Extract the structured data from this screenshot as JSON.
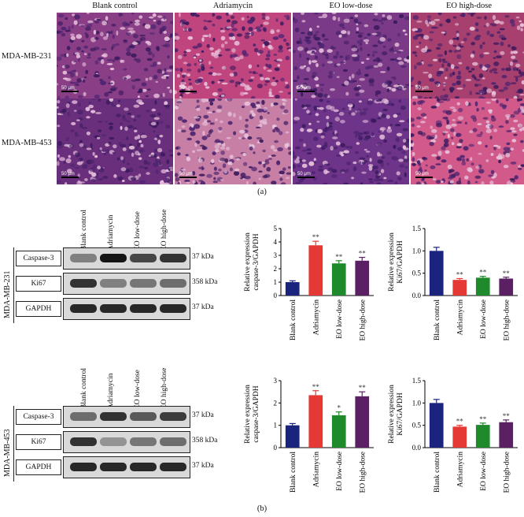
{
  "panel_a": {
    "columns": [
      "Blank control",
      "Adriamycin",
      "EO low-dose",
      "EO high-dose"
    ],
    "rows": [
      "MDA-MB-231",
      "MDA-MB-453"
    ],
    "scale_label": "50 μm",
    "caption": "(a)"
  },
  "panel_b": {
    "caption": "(b)",
    "lanes": [
      "Blank control",
      "Adriamycin",
      "EO low-dose",
      "EO high-dose"
    ],
    "blots": [
      {
        "cell_line": "MDA-MB-231",
        "bands": [
          {
            "name": "Caspase-3",
            "kda": "37 kDa"
          },
          {
            "name": "Ki67",
            "kda": "358 kDa"
          },
          {
            "name": "GAPDH",
            "kda": "37 kDa"
          }
        ]
      },
      {
        "cell_line": "MDA-MB-453",
        "bands": [
          {
            "name": "Caspase-3",
            "kda": "37 kDa"
          },
          {
            "name": "Ki67",
            "kda": "358 kDa"
          },
          {
            "name": "GAPDH",
            "kda": "37 kDa"
          }
        ]
      }
    ]
  },
  "colors": {
    "blank": "#1a237e",
    "adriamycin": "#e53935",
    "eo_low": "#1e8a2b",
    "eo_high": "#5b1f63"
  },
  "chart_data": [
    {
      "type": "bar",
      "id": "c1",
      "categories": [
        "Blank control",
        "Adriamycin",
        "EO low-dose",
        "EO high-dose"
      ],
      "values": [
        1.0,
        3.75,
        2.4,
        2.6
      ],
      "errors": [
        0.1,
        0.3,
        0.2,
        0.25
      ],
      "sig": [
        "",
        "**",
        "**",
        "**"
      ],
      "ylabel": [
        "Relative expression",
        "caspase-3/GAPDH"
      ],
      "ylim": [
        0,
        5
      ],
      "yticks": [
        0,
        1,
        2,
        3,
        4,
        5
      ]
    },
    {
      "type": "bar",
      "id": "c2",
      "categories": [
        "Blank control",
        "Adriamycin",
        "EO low-dose",
        "EO high-dose"
      ],
      "values": [
        1.0,
        0.35,
        0.4,
        0.38
      ],
      "errors": [
        0.08,
        0.03,
        0.03,
        0.03
      ],
      "sig": [
        "",
        "**",
        "**",
        "**"
      ],
      "ylabel": [
        "Relative expression",
        "Ki67/GAPDH"
      ],
      "ylim": [
        0,
        1.5
      ],
      "yticks": [
        0.0,
        0.5,
        1.0,
        1.5
      ]
    },
    {
      "type": "bar",
      "id": "c3",
      "categories": [
        "Blank control",
        "Adriamycin",
        "EO low-dose",
        "EO high-dose"
      ],
      "values": [
        1.0,
        2.35,
        1.45,
        2.3
      ],
      "errors": [
        0.08,
        0.2,
        0.15,
        0.2
      ],
      "sig": [
        "",
        "**",
        "*",
        "**"
      ],
      "ylabel": [
        "Relative expression",
        "caspase-3/GAPDH"
      ],
      "ylim": [
        0,
        3
      ],
      "yticks": [
        0,
        1,
        2,
        3
      ]
    },
    {
      "type": "bar",
      "id": "c4",
      "categories": [
        "Blank control",
        "Adriamycin",
        "EO low-dose",
        "EO high-dose"
      ],
      "values": [
        1.0,
        0.47,
        0.51,
        0.57
      ],
      "errors": [
        0.08,
        0.03,
        0.04,
        0.05
      ],
      "sig": [
        "",
        "**",
        "**",
        "**"
      ],
      "ylabel": [
        "Relative expression",
        "Ki67/GAPDH"
      ],
      "ylim": [
        0,
        1.5
      ],
      "yticks": [
        0.0,
        0.5,
        1.0,
        1.5
      ]
    }
  ]
}
